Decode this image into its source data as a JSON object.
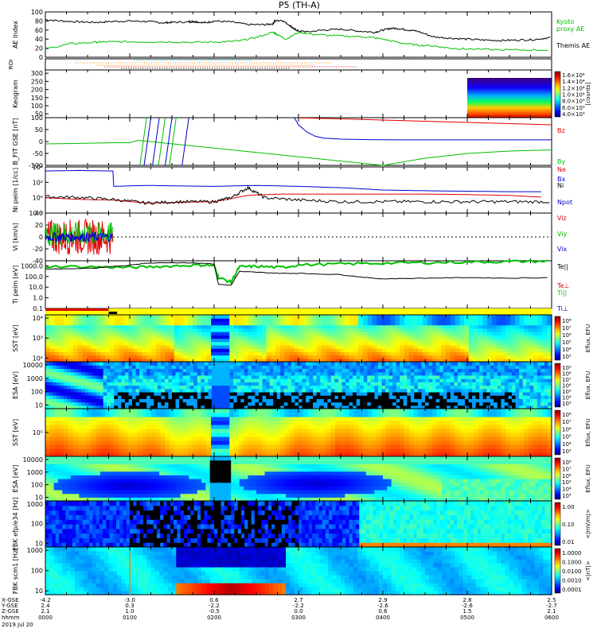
{
  "title": "P5 (TH-A)",
  "colors": {
    "black": "#000000",
    "red": "#e00000",
    "green": "#00c000",
    "blue": "#0000d0",
    "cyan": "#00c8ff",
    "yellow": "#ffff00",
    "orange": "#ff8000"
  },
  "chart_data": [
    {
      "type": "line",
      "id": "ae",
      "ylabel": "AE Index",
      "ylim": [
        0,
        100
      ],
      "yticks": [
        "0",
        "20",
        "40",
        "60",
        "80",
        "100"
      ],
      "legend": [
        "Kyoto",
        "proxy AE",
        "Themis AE"
      ],
      "series": [
        {
          "name": "Themis AE",
          "color": "#000000",
          "x": [
            0,
            0.2,
            0.4,
            0.6,
            0.8,
            1.0,
            1.2,
            1.4,
            1.5,
            1.7,
            1.75,
            1.8,
            1.9,
            2.0,
            2.2,
            2.4,
            2.6,
            2.7,
            2.72,
            2.8,
            2.9,
            2.95,
            3.0,
            3.1,
            3.3,
            3.5,
            3.7,
            3.9,
            4.0,
            4.1,
            4.2,
            4.3,
            4.4,
            4.6,
            4.8,
            5.0,
            5.2,
            5.4,
            5.6,
            5.8,
            6.0
          ],
          "y": [
            83,
            80,
            78,
            77,
            79,
            80,
            79,
            76,
            77,
            78,
            79,
            78,
            76,
            80,
            78,
            72,
            72,
            74,
            80,
            82,
            70,
            62,
            58,
            56,
            60,
            62,
            58,
            55,
            60,
            64,
            63,
            60,
            58,
            45,
            42,
            40,
            38,
            37,
            38,
            39,
            44
          ]
        },
        {
          "name": "Kyoto proxy AE",
          "color": "#00c000",
          "x": [
            0,
            0.3,
            0.6,
            0.7,
            1.0,
            1.4,
            1.8,
            2.1,
            2.3,
            2.5,
            2.7,
            2.75,
            2.85,
            3.0,
            3.2,
            3.5,
            3.8,
            4.0,
            4.2,
            4.4,
            4.6,
            4.8,
            5.0,
            5.5,
            6.0
          ],
          "y": [
            18,
            30,
            33,
            34,
            34,
            34,
            33,
            34,
            36,
            44,
            55,
            50,
            40,
            55,
            50,
            47,
            45,
            40,
            32,
            27,
            25,
            20,
            18,
            16,
            16
          ]
        }
      ]
    },
    {
      "type": "heatmap",
      "id": "keogram",
      "ylabel": "Keogram",
      "ylim": [
        0,
        300
      ],
      "yticks": [
        "50",
        "100",
        "150",
        "200",
        "250",
        "300"
      ],
      "colorbar_label": "[counts]",
      "colorbar_ticks": [
        "1.6×10⁴",
        "1.4×10⁴",
        "1.2×10⁴",
        "1.0×10⁴",
        "8.0×10³",
        "6.0×10³",
        "4.0×10³"
      ],
      "x_start": 5.0,
      "x_end": 6.0
    },
    {
      "type": "line",
      "id": "bfit",
      "ylabel": "B_FIT GSE [nT]",
      "ylim": [
        -100,
        100
      ],
      "yticks": [
        "-100",
        "-50",
        "0",
        "50",
        "100"
      ],
      "legend": [
        "Bz",
        "By",
        "Bx"
      ],
      "series": [
        {
          "name": "Bz",
          "color": "#e00000",
          "x": [
            3.0,
            3.5,
            4.0,
            4.5,
            5.0,
            5.5,
            6.0
          ],
          "y": [
            99,
            95,
            90,
            85,
            80,
            75,
            70
          ]
        },
        {
          "name": "By",
          "color": "#00c000",
          "x": [
            0,
            0.4,
            0.8,
            1.0,
            1.05,
            1.1,
            4.0,
            4.5,
            5.0,
            5.5,
            6.0
          ],
          "y": [
            -10,
            -8,
            -5,
            -5,
            0,
            5,
            -100,
            -70,
            -50,
            -40,
            -35
          ]
        },
        {
          "name": "Bx",
          "color": "#0000d0",
          "x": [
            2.95,
            3.0,
            3.1,
            3.2,
            3.3,
            3.5,
            3.8,
            4.2,
            5.0,
            6.0
          ],
          "y": [
            100,
            70,
            40,
            22,
            14,
            10,
            8,
            7,
            7,
            7
          ]
        }
      ]
    },
    {
      "type": "line",
      "id": "density",
      "ylabel": "Ni peim [1/cc]",
      "yscale": "log",
      "ylim": [
        0.01,
        10000
      ],
      "yticks": [
        "10⁻²",
        "10⁰",
        "10²",
        "10⁴"
      ],
      "legend": [
        "Ne",
        "Ni",
        "Npot"
      ],
      "series": [
        {
          "name": "Ni",
          "color": "#0000d0",
          "x": [
            0,
            0.4,
            0.8,
            0.81,
            1.2,
            1.5,
            2.0,
            2.5,
            3.0,
            3.5,
            4.0,
            4.5,
            5.0,
            5.5,
            6.0
          ],
          "y": [
            3000,
            3500,
            3000,
            30,
            40,
            35,
            30,
            40,
            30,
            20,
            10,
            8,
            7,
            6,
            6
          ]
        },
        {
          "name": "Ne",
          "color": "#e00000",
          "x": [
            0,
            0.4,
            0.8,
            1.2,
            1.6,
            2.0,
            2.4,
            2.8,
            3.2,
            3.6,
            4.0,
            4.5,
            5.0,
            5.5,
            6.0
          ],
          "y": [
            1,
            0.6,
            0.5,
            0.2,
            0.25,
            0.3,
            2,
            3,
            3,
            3,
            3,
            3,
            2.5,
            2,
            1
          ]
        },
        {
          "name": "Npot",
          "color": "#000000",
          "x": [
            0,
            0.4,
            0.8,
            1.2,
            1.6,
            2.0,
            2.2,
            2.4,
            2.6,
            3.0,
            3.5,
            4.0,
            4.5,
            5.0,
            5.5,
            6.0
          ],
          "y": [
            1.3,
            1.1,
            0.6,
            0.2,
            0.3,
            0.3,
            1,
            20,
            1,
            0.5,
            0.3,
            0.3,
            0.3,
            0.3,
            0.3,
            0.3
          ]
        }
      ]
    },
    {
      "type": "line",
      "id": "vi",
      "ylabel": "Vi [km/s]",
      "ylim": [
        -40,
        40
      ],
      "yticks": [
        "-40",
        "-20",
        "0",
        "20",
        "40"
      ],
      "legend": [
        "Viz",
        "Viy",
        "Vix"
      ],
      "series": [
        {
          "name": "Viz",
          "color": "#e00000",
          "x": [
            0,
            0.8
          ],
          "amplitude": 30
        },
        {
          "name": "Viy",
          "color": "#00c000",
          "x": [
            0,
            0.8
          ],
          "amplitude": 20
        },
        {
          "name": "Vix",
          "color": "#0000d0",
          "x": [
            0,
            0.8
          ],
          "amplitude": 8
        }
      ]
    },
    {
      "type": "line",
      "id": "temp",
      "ylabel": "Ti peim [eV]",
      "yscale": "log",
      "ylim": [
        0.1,
        3000
      ],
      "yticks": [
        "0.1",
        "1.0",
        "10.0",
        "100.0",
        "1000.0"
      ],
      "legend": [
        "Te||",
        "Te⊥",
        "Ti||",
        "Ti⊥"
      ],
      "series": [
        {
          "name": "Ti||",
          "color": "#00c000",
          "x": [
            0,
            0.6,
            1.0,
            1.4,
            1.8,
            2.0,
            2.05,
            2.2,
            2.3,
            2.5,
            2.8,
            3.0,
            3.5,
            4.0,
            4.5,
            5.0,
            5.5,
            6.0
          ],
          "y": [
            900,
            800,
            700,
            900,
            1200,
            1100,
            80,
            30,
            800,
            900,
            700,
            1200,
            1500,
            1800,
            2000,
            2300,
            2500,
            2800
          ]
        },
        {
          "name": "Te||",
          "color": "#000000",
          "x": [
            0,
            0.6,
            1.0,
            1.2,
            1.4,
            1.8,
            2.0,
            2.05,
            2.2,
            2.3,
            2.5,
            2.8,
            3.0,
            3.5,
            3.8,
            4.0,
            4.5,
            5.0,
            5.5,
            6.0
          ],
          "y": [
            500,
            600,
            1200,
            1800,
            2000,
            1800,
            1500,
            20,
            15,
            300,
            250,
            200,
            200,
            150,
            80,
            60,
            70,
            80,
            70,
            80
          ]
        }
      ]
    },
    {
      "type": "heatmap",
      "id": "sst-e",
      "ylabel": "SST [eV]",
      "yticks": [
        "10²",
        "10³",
        "10⁴"
      ],
      "colorbar_label": "Eflux, EFU",
      "colorbar_ticks": [
        "10⁸",
        "10⁷",
        "10⁶",
        "10⁵",
        "10⁴",
        "10³"
      ]
    },
    {
      "type": "heatmap",
      "id": "esa-e",
      "ylabel": "ESA [eV]",
      "yticks": [
        "10",
        "100",
        "1000",
        "10000"
      ],
      "colorbar_label": "Eflux, EFU",
      "colorbar_ticks": [
        "10⁹",
        "10⁸",
        "10⁷",
        "10⁶",
        "10⁵",
        "10⁴",
        "10³"
      ]
    },
    {
      "type": "heatmap",
      "id": "sst-i",
      "ylabel": "SST [eV]",
      "yticks": [
        "10⁵"
      ],
      "colorbar_label": "Eflux, EFU",
      "colorbar_ticks": [
        "10⁸",
        "10⁷",
        "10⁶",
        "10⁵",
        "10⁴",
        "10³"
      ]
    },
    {
      "type": "heatmap",
      "id": "esa-i",
      "ylabel": "ESA [eV]",
      "yticks": [
        "10",
        "100",
        "1000",
        "10000"
      ],
      "colorbar_label": "Eflux, EFU",
      "colorbar_ticks": [
        "10⁸",
        "10⁷",
        "10⁶",
        "10⁵",
        "10⁴",
        "10³"
      ]
    },
    {
      "type": "heatmap",
      "id": "fbk-e",
      "ylabel": "FBK efp/e34 [Hz]",
      "yticks": [
        "10",
        "100",
        "1000"
      ],
      "colorbar_label": "<|mV/m|>",
      "colorbar_ticks": [
        "1.00",
        "0.10",
        "0.01"
      ]
    },
    {
      "type": "heatmap",
      "id": "fbk-b",
      "ylabel": "FBK scm1 [Hz]",
      "yticks": [
        "10",
        "100",
        "1000"
      ],
      "colorbar_label": "<|nT|>",
      "colorbar_ticks": [
        "1.0000",
        "0.1000",
        "0.0100",
        "0.0010",
        "0.0001"
      ]
    }
  ],
  "roi_label": "ROI",
  "xaxis": {
    "row_labels": [
      "X-GSE",
      "Y-GSE",
      "Z-GSE",
      "hhmm",
      "2019 Jul 20"
    ],
    "columns": [
      [
        "-4.2",
        "2.4",
        "2.1",
        "0000"
      ],
      [
        "-3.0",
        "0.3",
        "1.0",
        "0100"
      ],
      [
        "0.6",
        "-2.2",
        "-0.5",
        "0200"
      ],
      [
        "2.7",
        "-2.2",
        "0.0",
        "0300"
      ],
      [
        "2.9",
        "-2.6",
        "0.6",
        "0400"
      ],
      [
        "2.8",
        "-2.6",
        "1.5",
        "0500"
      ],
      [
        "2.5",
        "-2.7",
        "2.1",
        "0600"
      ]
    ]
  }
}
